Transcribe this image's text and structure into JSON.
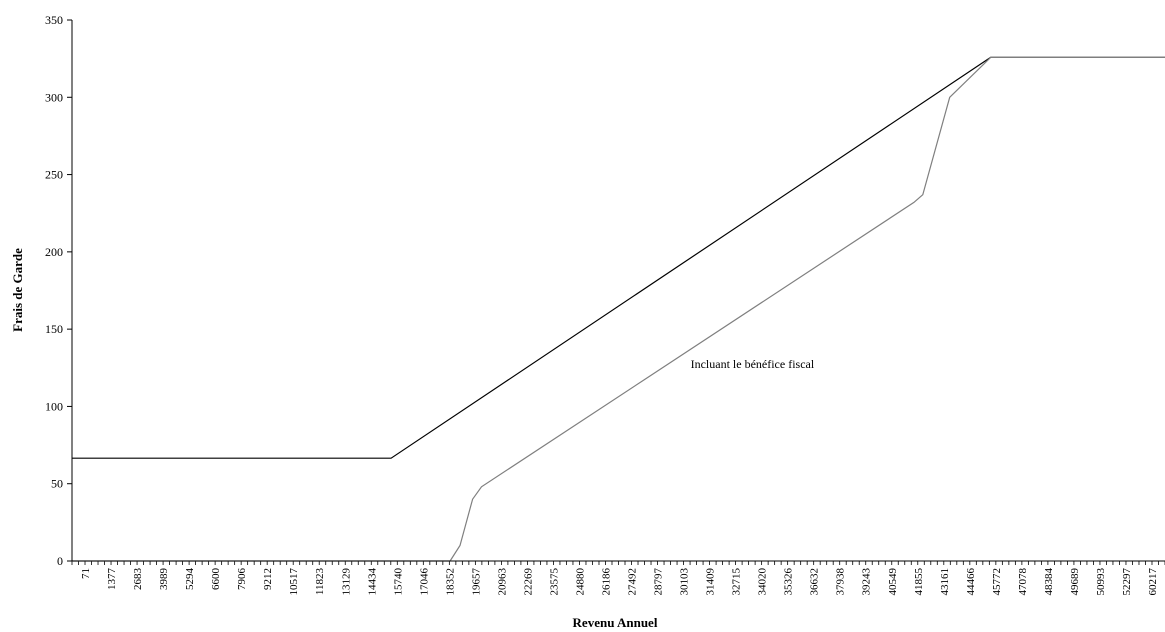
{
  "chart_data": {
    "type": "line",
    "title": "",
    "xlabel": "Revenu Annuel",
    "ylabel": "Frais de Garde",
    "ylim": [
      0,
      350
    ],
    "yticks": [
      0,
      50,
      100,
      150,
      200,
      250,
      300,
      350
    ],
    "grid": false,
    "x_range": [
      71,
      61000
    ],
    "x_tick_labels": [
      "71",
      "1377",
      "2683",
      "3989",
      "5294",
      "6600",
      "7906",
      "9212",
      "10517",
      "11823",
      "13129",
      "14434",
      "15740",
      "17046",
      "18352",
      "19657",
      "20963",
      "22269",
      "23575",
      "24880",
      "26186",
      "27492",
      "28797",
      "30103",
      "31409",
      "32715",
      "34020",
      "35326",
      "36632",
      "37938",
      "39243",
      "40549",
      "41855",
      "43161",
      "44466",
      "45772",
      "47078",
      "48384",
      "49689",
      "50993",
      "52297",
      "60217"
    ],
    "annotations": [
      {
        "text": "Incluant le bénéfice fiscal",
        "x": 38000,
        "y": 125
      }
    ],
    "series": [
      {
        "color": "#000000",
        "points": [
          [
            71,
            66.5
          ],
          [
            17860,
            66.5
          ],
          [
            51300,
            326
          ],
          [
            61000,
            326
          ]
        ]
      },
      {
        "color": "#7f7f7f",
        "points": [
          [
            71,
            0
          ],
          [
            21150,
            0
          ],
          [
            21700,
            10
          ],
          [
            22400,
            40
          ],
          [
            22900,
            48
          ],
          [
            47000,
            232
          ],
          [
            47500,
            237
          ],
          [
            49000,
            300
          ],
          [
            51300,
            326
          ],
          [
            61000,
            326
          ]
        ]
      }
    ]
  }
}
